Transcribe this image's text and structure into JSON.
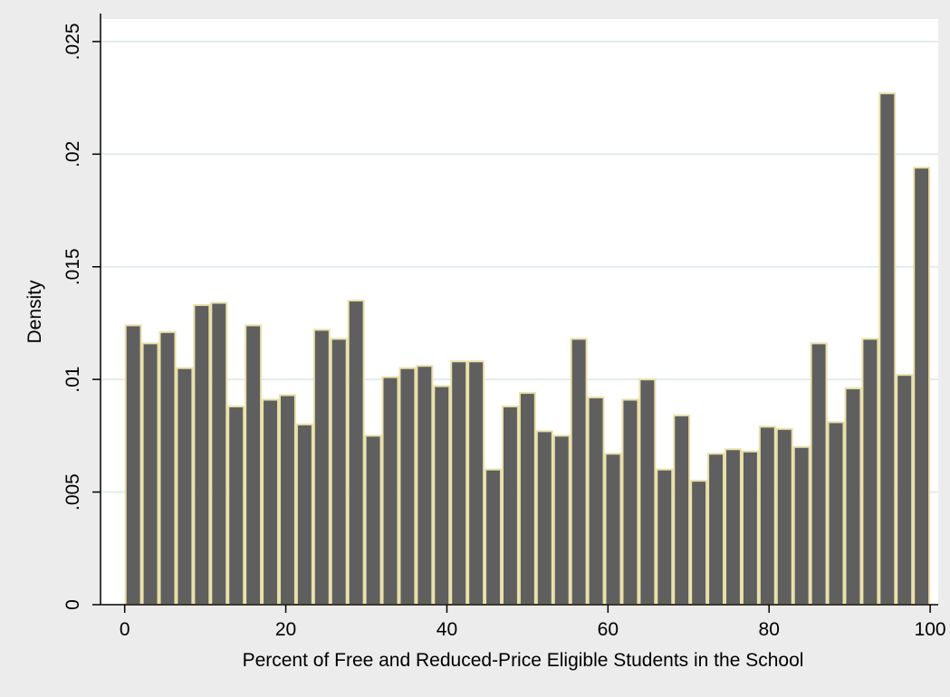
{
  "chart_data": {
    "type": "bar",
    "title": "",
    "xlabel": "Percent of Free and Reduced-Price Eligible Students in the School",
    "ylabel": "Density",
    "xlim": [
      -3,
      101
    ],
    "ylim": [
      0,
      0.026
    ],
    "x_ticks": [
      {
        "value": 0,
        "label": "0"
      },
      {
        "value": 20,
        "label": "20"
      },
      {
        "value": 40,
        "label": "40"
      },
      {
        "value": 60,
        "label": "60"
      },
      {
        "value": 80,
        "label": "80"
      },
      {
        "value": 100,
        "label": "100"
      }
    ],
    "y_ticks": [
      {
        "value": 0,
        "label": "0"
      },
      {
        "value": 0.005,
        "label": ".005"
      },
      {
        "value": 0.01,
        "label": ".01"
      },
      {
        "value": 0.015,
        "label": ".015"
      },
      {
        "value": 0.02,
        "label": ".02"
      },
      {
        "value": 0.025,
        "label": ".025"
      }
    ],
    "grid": true,
    "colors": {
      "background": "#ececec",
      "plot_background": "#ffffff",
      "bar_fill": "#5f5f5f",
      "bar_edge": "#e8e0a8",
      "grid": "#e2ecee",
      "axis": "#000000"
    },
    "bin_start": 0,
    "bin_width": 2.12766,
    "values": [
      0.0124,
      0.0116,
      0.0121,
      0.0105,
      0.0133,
      0.0134,
      0.0088,
      0.0124,
      0.0091,
      0.0093,
      0.008,
      0.0122,
      0.0118,
      0.0135,
      0.0075,
      0.0101,
      0.0105,
      0.0106,
      0.0097,
      0.0108,
      0.0108,
      0.006,
      0.0088,
      0.0094,
      0.0077,
      0.0075,
      0.0118,
      0.0092,
      0.0067,
      0.0091,
      0.01,
      0.006,
      0.0084,
      0.0055,
      0.0067,
      0.0069,
      0.0068,
      0.0079,
      0.0078,
      0.007,
      0.0116,
      0.0081,
      0.0096,
      0.0118,
      0.0227,
      0.0102,
      0.0194
    ]
  }
}
